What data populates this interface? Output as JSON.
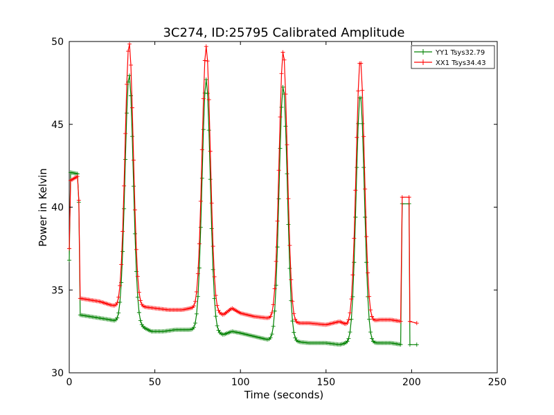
{
  "chart_data": {
    "type": "line",
    "title": "3C274, ID:25795 Calibrated Amplitude",
    "xlabel": "Time (seconds)",
    "ylabel": "Power in Kelvin",
    "xlim": [
      0,
      250
    ],
    "ylim": [
      30,
      50
    ],
    "x_ticks": [
      0,
      50,
      100,
      150,
      200,
      250
    ],
    "y_ticks": [
      30,
      35,
      40,
      45,
      50
    ],
    "grid": false,
    "legend_position": "top-right",
    "marker": "+",
    "series": [
      {
        "name": "YY1 Tsys32.79",
        "color": "#008000",
        "baseline_anchors": [
          [
            0,
            36.8
          ],
          [
            0.6,
            42.1
          ],
          [
            5.5,
            42.0
          ],
          [
            6,
            33.5
          ],
          [
            12,
            33.4
          ],
          [
            18,
            33.3
          ],
          [
            24,
            33.2
          ],
          [
            28,
            33.1
          ],
          [
            42,
            32.8
          ],
          [
            48,
            32.5
          ],
          [
            55,
            32.5
          ],
          [
            62,
            32.6
          ],
          [
            68,
            32.6
          ],
          [
            71,
            32.6
          ],
          [
            87,
            32.4
          ],
          [
            90,
            32.3
          ],
          [
            95,
            32.5
          ],
          [
            100,
            32.4
          ],
          [
            108,
            32.2
          ],
          [
            116,
            32.0
          ],
          [
            131,
            31.9
          ],
          [
            140,
            31.8
          ],
          [
            150,
            31.8
          ],
          [
            158,
            31.7
          ],
          [
            162,
            31.8
          ],
          [
            176,
            31.8
          ],
          [
            181,
            31.8
          ],
          [
            188,
            31.8
          ],
          [
            194,
            31.7
          ]
        ],
        "peaks": [
          {
            "x": 35,
            "y": 48.0
          },
          {
            "x": 80,
            "y": 47.7
          },
          {
            "x": 125,
            "y": 47.3
          },
          {
            "x": 170,
            "y": 46.8
          }
        ],
        "step": [
          {
            "x": 194.5,
            "y": 40.2
          },
          {
            "x": 198.5,
            "y": 40.2
          },
          {
            "x": 199,
            "y": 31.7
          },
          {
            "x": 203,
            "y": 31.7
          }
        ]
      },
      {
        "name": "XX1 Tsys34.43",
        "color": "#ff0000",
        "baseline_anchors": [
          [
            0,
            37.5
          ],
          [
            0.6,
            41.6
          ],
          [
            5.5,
            41.9
          ],
          [
            6,
            34.5
          ],
          [
            12,
            34.4
          ],
          [
            18,
            34.3
          ],
          [
            24,
            34.1
          ],
          [
            28,
            34.0
          ],
          [
            42,
            34.0
          ],
          [
            50,
            33.9
          ],
          [
            58,
            33.8
          ],
          [
            66,
            33.8
          ],
          [
            71,
            33.9
          ],
          [
            87,
            33.6
          ],
          [
            90,
            33.5
          ],
          [
            95,
            33.9
          ],
          [
            100,
            33.6
          ],
          [
            108,
            33.4
          ],
          [
            116,
            33.3
          ],
          [
            131,
            33.0
          ],
          [
            140,
            33.0
          ],
          [
            150,
            32.9
          ],
          [
            158,
            33.1
          ],
          [
            162,
            32.9
          ],
          [
            176,
            33.1
          ],
          [
            181,
            33.2
          ],
          [
            188,
            33.2
          ],
          [
            194,
            33.1
          ]
        ],
        "peaks": [
          {
            "x": 35,
            "y": 49.9
          },
          {
            "x": 80,
            "y": 49.7
          },
          {
            "x": 125,
            "y": 49.4
          },
          {
            "x": 170,
            "y": 48.9
          }
        ],
        "step": [
          {
            "x": 194.5,
            "y": 40.6
          },
          {
            "x": 198.5,
            "y": 40.6
          },
          {
            "x": 199,
            "y": 33.1
          },
          {
            "x": 203,
            "y": 33.0
          }
        ]
      }
    ]
  }
}
